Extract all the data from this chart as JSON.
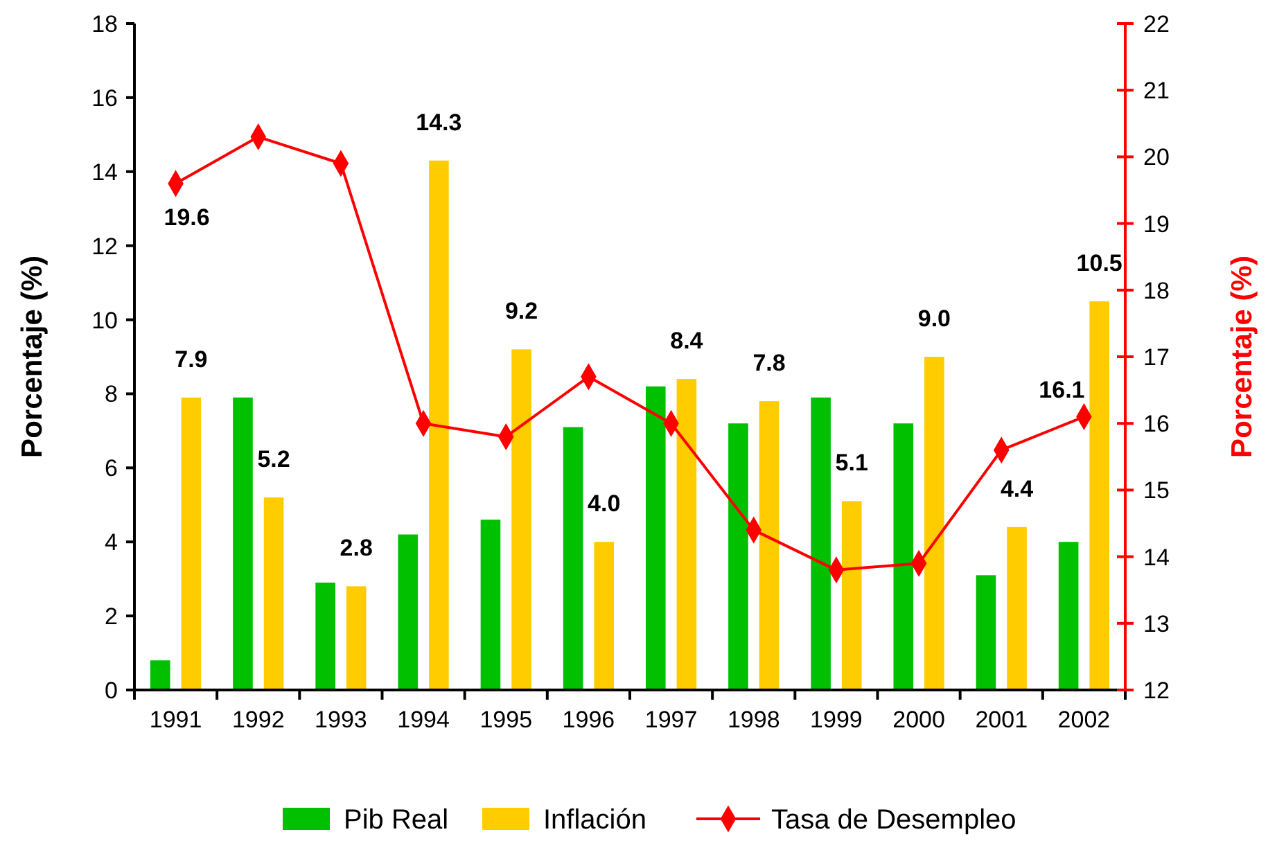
{
  "chart_data": {
    "type": "bar",
    "categories": [
      "1991",
      "1992",
      "1993",
      "1994",
      "1995",
      "1996",
      "1997",
      "1998",
      "1999",
      "2000",
      "2001",
      "2002"
    ],
    "ylabel": "Porcentaje (%)",
    "y2label": "Porcentaje (%)",
    "ylim": [
      0,
      18
    ],
    "yticks": [
      0,
      2,
      4,
      6,
      8,
      10,
      12,
      14,
      16,
      18
    ],
    "y2lim": [
      12,
      22
    ],
    "y2ticks": [
      12,
      13,
      14,
      15,
      16,
      17,
      18,
      19,
      20,
      21,
      22
    ],
    "grid": false,
    "legend": "bottom",
    "series": [
      {
        "name": "Pib Real",
        "color": "#00c000",
        "values": [
          0.8,
          7.9,
          2.9,
          4.2,
          4.6,
          7.1,
          8.2,
          7.2,
          7.9,
          7.2,
          3.1,
          4.0
        ]
      },
      {
        "name": "Inflación",
        "color": "#ffcc00",
        "values": [
          7.9,
          5.2,
          2.8,
          14.3,
          9.2,
          4.0,
          8.4,
          7.8,
          5.1,
          9.0,
          4.4,
          10.5
        ],
        "value_labels": [
          "7.9",
          "5.2",
          "2.8",
          "14.3",
          "9.2",
          "4.0",
          "8.4",
          "7.8",
          "5.1",
          "9.0",
          "4.4",
          "10.5"
        ]
      },
      {
        "name": "Tasa de Desempleo",
        "type": "line",
        "axis": "y2",
        "color": "#ff0000",
        "marker": "diamond",
        "line_style": "solid",
        "values": [
          19.6,
          20.3,
          19.9,
          16.0,
          15.8,
          16.7,
          16.0,
          14.4,
          13.8,
          13.9,
          15.6,
          16.1
        ],
        "value_labels": [
          "19.6",
          null,
          null,
          null,
          null,
          null,
          null,
          null,
          null,
          null,
          null,
          "16.1"
        ]
      }
    ]
  }
}
